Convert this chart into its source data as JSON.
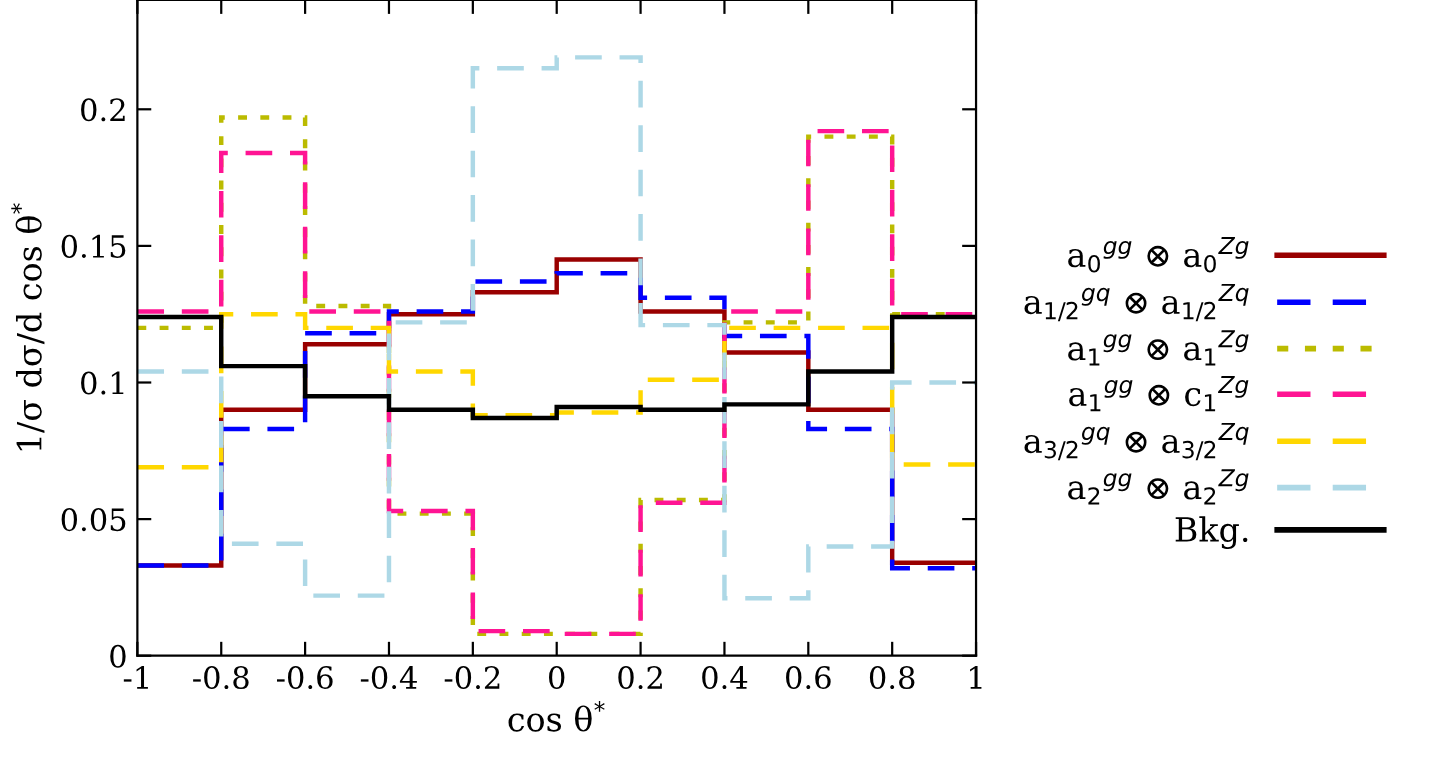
{
  "chart_data": {
    "type": "histogram",
    "xlabel": "cos θ$^{*}$",
    "ylabel": "1/σ dσ/d cos θ$^{*}$",
    "bins": [
      -1,
      -0.8,
      -0.6,
      -0.4,
      -0.2,
      0,
      0.2,
      0.4,
      0.6,
      0.8,
      1
    ],
    "series": [
      {
        "name": "a$_{0}$$^{gg}$ ⊗ a$_{0}$$^{Zg}$",
        "color": "#990000",
        "line_style": "solid",
        "values": [
          0.033,
          0.09,
          0.114,
          0.125,
          0.133,
          0.145,
          0.126,
          0.111,
          0.09,
          0.034
        ]
      },
      {
        "name": "a$_{1/2}$$^{gq}$ ⊗ a$_{1/2}$$^{Zq}$",
        "color": "#0000ff",
        "line_style": "dashed",
        "values": [
          0.033,
          0.083,
          0.118,
          0.126,
          0.137,
          0.14,
          0.131,
          0.117,
          0.083,
          0.032
        ]
      },
      {
        "name": "a$_{1}$$^{gg}$ ⊗ a$_{1}$$^{Zg}$",
        "color": "#bbbb00",
        "line_style": "dotted",
        "values": [
          0.12,
          0.197,
          0.128,
          0.052,
          0.008,
          0.008,
          0.057,
          0.122,
          0.19,
          0.125
        ]
      },
      {
        "name": "a$_{1}$$^{gg}$ ⊗ c$_{1}$$^{Zg}$",
        "color": "#ff1493",
        "line_style": "dashed",
        "values": [
          0.126,
          0.184,
          0.126,
          0.053,
          0.009,
          0.008,
          0.056,
          0.126,
          0.192,
          0.125
        ]
      },
      {
        "name": "a$_{3/2}$$^{gq}$ ⊗ a$_{3/2}$$^{Zq}$",
        "color": "#ffd700",
        "line_style": "dashed",
        "values": [
          0.069,
          0.125,
          0.12,
          0.104,
          0.088,
          0.089,
          0.101,
          0.12,
          0.12,
          0.07
        ]
      },
      {
        "name": "a$_{2}$$^{gg}$ ⊗ a$_{2}$$^{Zg}$",
        "color": "#add8e6",
        "line_style": "dashed",
        "values": [
          0.104,
          0.041,
          0.022,
          0.122,
          0.215,
          0.219,
          0.121,
          0.021,
          0.04,
          0.1
        ]
      },
      {
        "name": "Bkg.",
        "color": "#000000",
        "line_style": "solid",
        "values": [
          0.124,
          0.106,
          0.095,
          0.09,
          0.087,
          0.091,
          0.09,
          0.092,
          0.104,
          0.124
        ]
      }
    ],
    "xlim": [
      -1,
      1
    ],
    "ylim": [
      0,
      0.24
    ],
    "xticks": [
      -1,
      -0.8,
      -0.6,
      -0.4,
      -0.2,
      0,
      0.2,
      0.4,
      0.6,
      0.8,
      1
    ],
    "yticks": [
      0,
      0.05,
      0.1,
      0.15,
      0.2
    ],
    "grid": false,
    "legend": "right"
  }
}
